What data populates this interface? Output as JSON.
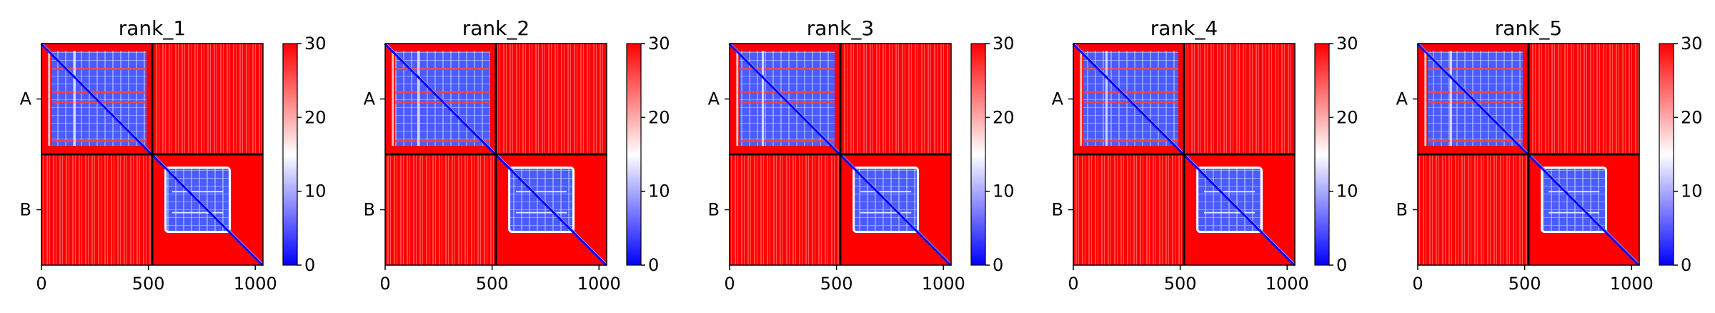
{
  "chart_data": {
    "type": "heatmap",
    "colormap": {
      "name": "bwr",
      "low": "#0000ff",
      "mid": "#ffffff",
      "high": "#ff0000"
    },
    "value_range": [
      0,
      30
    ],
    "colorbar_ticks": [
      "0",
      "10",
      "20",
      "30"
    ],
    "x_ticks": [
      "0",
      "500",
      "1000"
    ],
    "x_tick_values": [
      0,
      500,
      1000
    ],
    "x_range": [
      0,
      1036
    ],
    "chain_boundary": 518,
    "chain_labels": [
      "A",
      "B"
    ],
    "grid": false,
    "panels": [
      {
        "title": "rank_1"
      },
      {
        "title": "rank_2"
      },
      {
        "title": "rank_3"
      },
      {
        "title": "rank_4"
      },
      {
        "title": "rank_5"
      }
    ]
  }
}
